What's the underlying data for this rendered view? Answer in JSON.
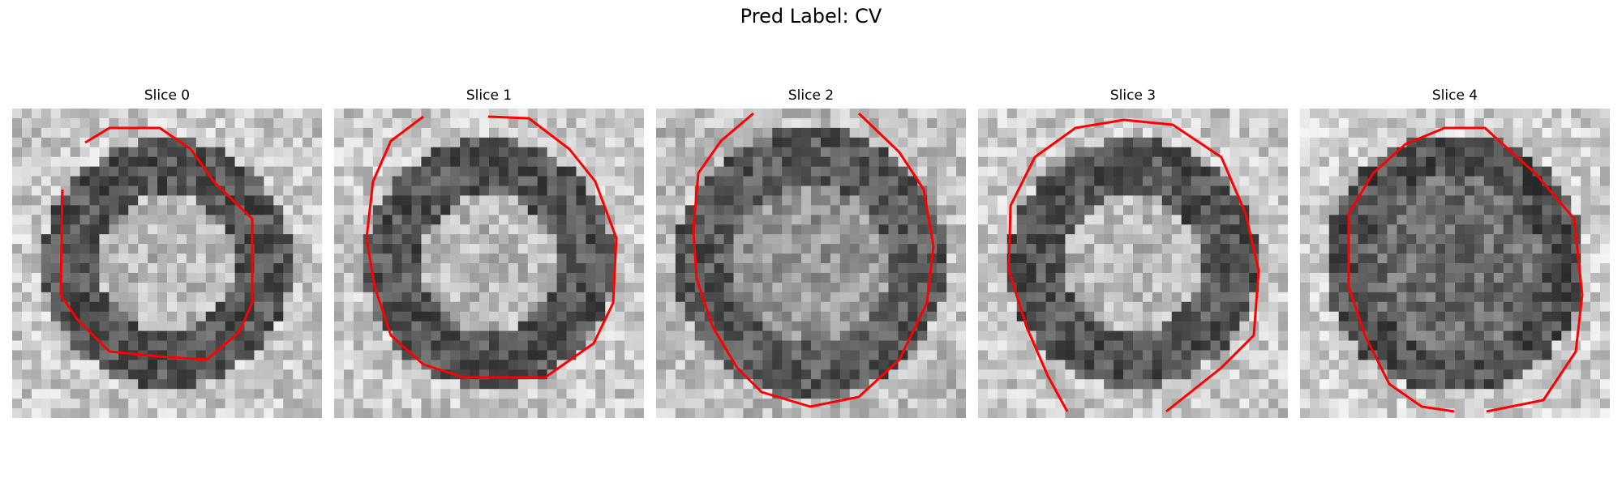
{
  "figure": {
    "title": "Pred Label: CV",
    "contour_color": "#ff0000"
  },
  "slices": [
    {
      "label": "Slice 0",
      "pattern": "ring-dark"
    },
    {
      "label": "Slice 1",
      "pattern": "ring-dark"
    },
    {
      "label": "Slice 2",
      "pattern": "mottled-dark"
    },
    {
      "label": "Slice 3",
      "pattern": "ring-bright-center"
    },
    {
      "label": "Slice 4",
      "pattern": "dark-disk"
    }
  ]
}
